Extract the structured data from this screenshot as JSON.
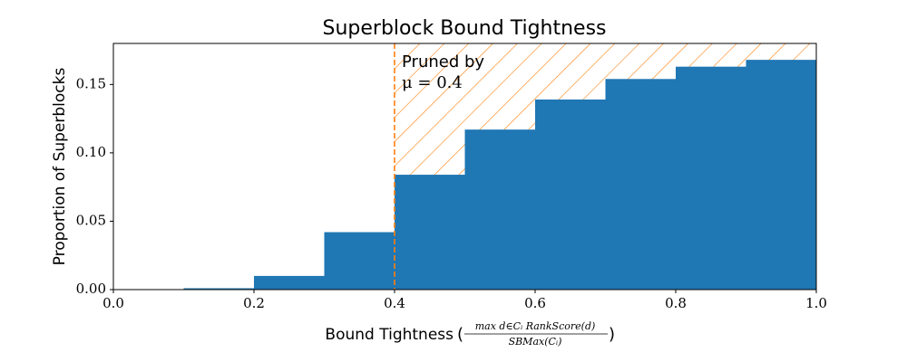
{
  "chart_data": {
    "type": "histogram",
    "title": "Superblock Bound Tightness",
    "xlabel": "Bound Tightness",
    "xlabel_numerator": "max d∈Cᵢ RankScore(d)",
    "xlabel_denominator": "SBMax(Cᵢ)",
    "ylabel": "Proportion of Superblocks",
    "bins": [
      0.0,
      0.1,
      0.2,
      0.3,
      0.4,
      0.5,
      0.6,
      0.7,
      0.8,
      0.9,
      1.0
    ],
    "values": [
      0,
      0.001,
      0.01,
      0.042,
      0.084,
      0.117,
      0.139,
      0.154,
      0.163,
      0.168
    ],
    "color": "#1f77b4",
    "threshold": 0.4,
    "threshold_color": "#ff7f0e",
    "annotation": [
      "Pruned by",
      "μ = 0.4"
    ],
    "xlim": [
      0.0,
      1.0
    ],
    "ylim": [
      0,
      0.18
    ],
    "xticks": [
      {
        "value": 0,
        "label": "0.0"
      },
      {
        "value": 0.2,
        "label": "0.2"
      },
      {
        "value": 0.4,
        "label": "0.4"
      },
      {
        "value": 0.6,
        "label": "0.6"
      },
      {
        "value": 0.8,
        "label": "0.8"
      },
      {
        "value": 1.0,
        "label": "1.0"
      }
    ],
    "yticks": [
      {
        "value": 0,
        "label": "0.00"
      },
      {
        "value": 0.05,
        "label": "0.05"
      },
      {
        "value": 0.1,
        "label": "0.10"
      },
      {
        "value": 0.15,
        "label": "0.15"
      }
    ]
  }
}
